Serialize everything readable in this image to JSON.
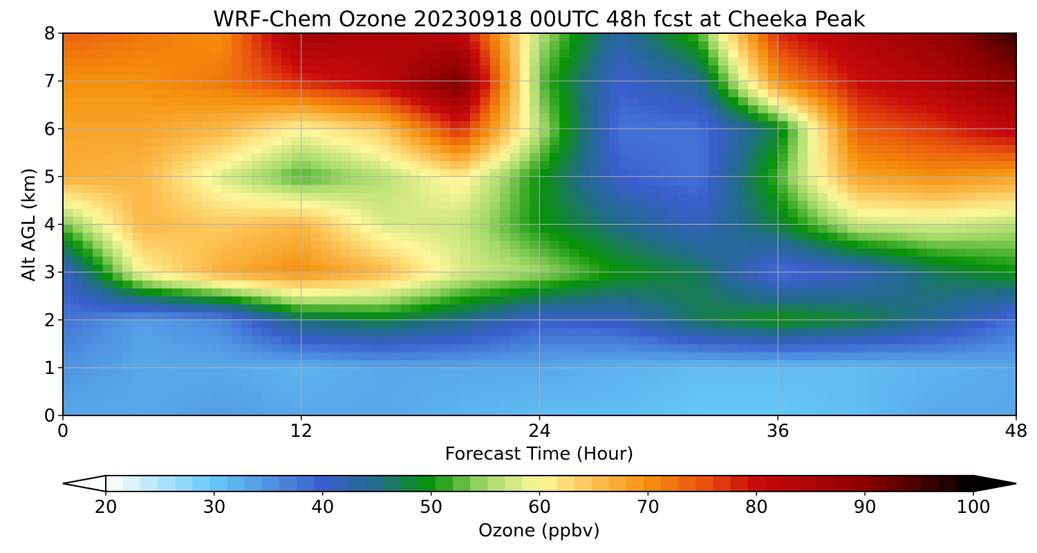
{
  "chart_data": {
    "type": "heatmap",
    "title": "WRF-Chem Ozone  20230918 00UTC 48h fcst at Cheeka Peak",
    "xlabel": "Forecast Time (Hour)",
    "ylabel": "Alt AGL (km)",
    "xlim": [
      0,
      48
    ],
    "ylim": [
      0,
      8
    ],
    "x_ticks": [
      0,
      12,
      24,
      36,
      48
    ],
    "x_tick_labels": [
      "0",
      "12",
      "24",
      "36",
      "48"
    ],
    "y_ticks": [
      0,
      1,
      2,
      3,
      4,
      5,
      6,
      7,
      8
    ],
    "y_tick_labels": [
      "0",
      "1",
      "2",
      "3",
      "4",
      "5",
      "6",
      "7",
      "8"
    ],
    "grid": true,
    "x_grid": [
      0,
      4,
      8,
      12,
      16,
      20,
      24,
      28,
      32,
      36,
      40,
      44,
      48
    ],
    "y_grid": [
      0,
      1,
      2,
      3,
      4,
      5,
      6,
      7,
      8
    ],
    "z_grid_ppbv": [
      [
        33,
        33,
        34,
        33,
        33,
        32,
        31,
        31,
        30,
        30,
        31,
        33,
        33
      ],
      [
        35,
        33,
        33,
        32,
        33,
        33,
        33,
        32,
        31,
        31,
        31,
        32,
        33
      ],
      [
        38,
        34,
        36,
        46,
        48,
        45,
        40,
        41,
        47,
        50,
        48,
        44,
        38
      ],
      [
        40,
        60,
        67,
        70,
        66,
        58,
        55,
        50,
        47,
        38,
        41,
        47,
        50
      ],
      [
        53,
        66,
        64,
        66,
        58,
        57,
        50,
        45,
        41,
        48,
        57,
        58,
        56
      ],
      [
        67,
        66,
        58,
        52,
        56,
        61,
        50,
        40,
        38,
        52,
        68,
        70,
        68
      ],
      [
        68,
        68,
        66,
        60,
        64,
        78,
        56,
        38,
        38,
        48,
        74,
        77,
        82
      ],
      [
        70,
        70,
        72,
        78,
        82,
        92,
        53,
        40,
        44,
        70,
        80,
        84,
        90
      ],
      [
        74,
        72,
        70,
        86,
        84,
        82,
        56,
        43,
        52,
        78,
        84,
        88,
        96
      ]
    ],
    "colorbar": {
      "label": "Ozone  (ppbv)",
      "min": 20,
      "max": 100,
      "tick_values": [
        20,
        30,
        40,
        50,
        60,
        70,
        80,
        90,
        100
      ],
      "tick_labels": [
        "20",
        "30",
        "40",
        "50",
        "60",
        "70",
        "80",
        "90",
        "100"
      ],
      "extend": "both",
      "color_stops": [
        {
          "value": 20,
          "color": "#ffffff"
        },
        {
          "value": 30,
          "color": "#65c7f7"
        },
        {
          "value": 40,
          "color": "#3a5fcd"
        },
        {
          "value": 45,
          "color": "#216b8a"
        },
        {
          "value": 50,
          "color": "#079307"
        },
        {
          "value": 55,
          "color": "#a4d96a"
        },
        {
          "value": 60,
          "color": "#fff89a"
        },
        {
          "value": 65,
          "color": "#fcc053"
        },
        {
          "value": 70,
          "color": "#f5900d"
        },
        {
          "value": 75,
          "color": "#e9530e"
        },
        {
          "value": 80,
          "color": "#c70a0a"
        },
        {
          "value": 90,
          "color": "#8c0000"
        },
        {
          "value": 100,
          "color": "#000000"
        }
      ]
    }
  }
}
